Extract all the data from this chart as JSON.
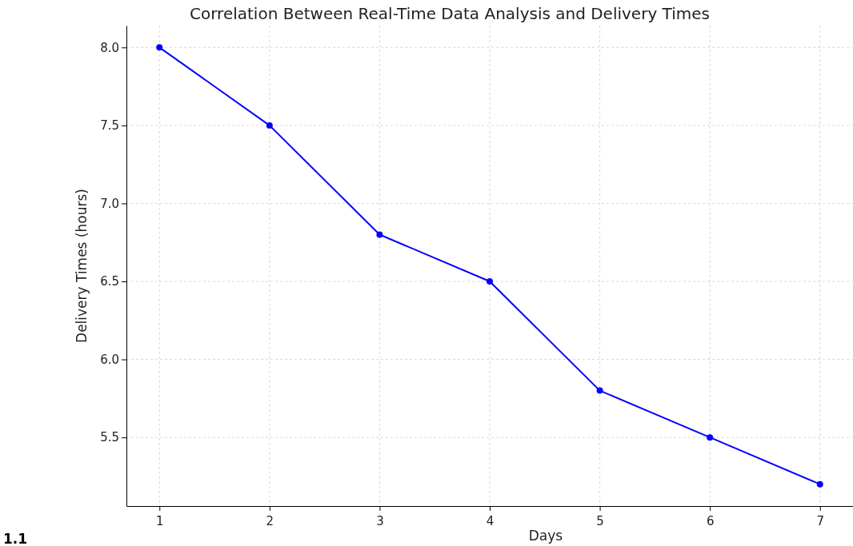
{
  "chart_data": {
    "type": "line",
    "title": "Correlation Between Real-Time Data Analysis and Delivery Times",
    "xlabel": "Days",
    "ylabel": "Delivery Times (hours)",
    "x": [
      1,
      2,
      3,
      4,
      5,
      6,
      7
    ],
    "series": [
      {
        "color": "#0000ff",
        "values": [
          8.0,
          7.5,
          6.8,
          6.5,
          5.8,
          5.5,
          5.2
        ]
      }
    ],
    "xlim": [
      0.7,
      7.3
    ],
    "xticks": [
      1,
      2,
      3,
      4,
      5,
      6,
      7
    ],
    "ylim": [
      5.06,
      8.14
    ],
    "yticks": [
      {
        "value": 5.5,
        "label": "5.5"
      },
      {
        "value": 6,
        "label": "6.0"
      },
      {
        "value": 6.5,
        "label": "6.5"
      },
      {
        "value": 7,
        "label": "7.0"
      },
      {
        "value": 7.5,
        "label": "7.5"
      },
      {
        "value": 8,
        "label": "8.0"
      }
    ],
    "grid": true,
    "marker": "circle",
    "line_style": "solid",
    "annotations": [
      "1.1"
    ]
  }
}
